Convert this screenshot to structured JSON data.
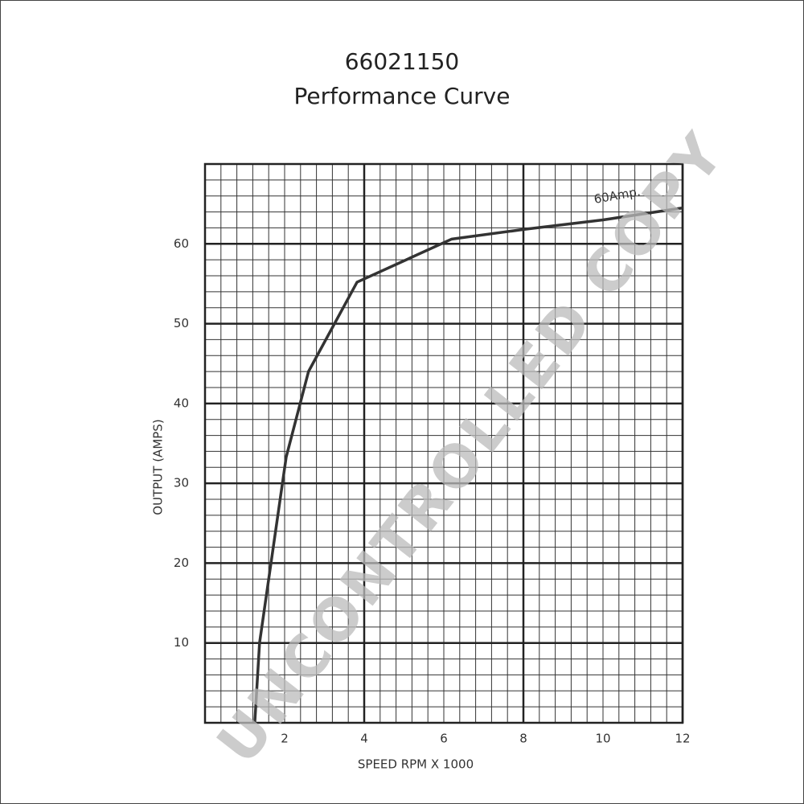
{
  "chart_data": {
    "type": "line",
    "title": "66021150",
    "subtitle": "Performance Curve",
    "x_label": "SPEED RPM X 1000",
    "y_label": "OUTPUT (AMPS)",
    "annotation": "60Amp.",
    "watermark": "UNCONTROLLED COPY",
    "x": [
      1.25,
      1.37,
      2.04,
      2.6,
      3.82,
      6.2,
      8,
      10,
      12
    ],
    "series": [
      {
        "color": "#333333",
        "values": [
          0,
          10,
          33.3,
          44,
          55.2,
          60.6,
          61.8,
          63,
          64.5
        ]
      }
    ],
    "xlim": [
      0,
      12
    ],
    "xticks": [
      2,
      4,
      6,
      8,
      10,
      12
    ],
    "ylim": [
      0,
      70
    ],
    "yticks": [
      10,
      20,
      30,
      40,
      50,
      60
    ],
    "grid": true,
    "minor_grid": {
      "x": 0.4,
      "y": 2
    }
  }
}
